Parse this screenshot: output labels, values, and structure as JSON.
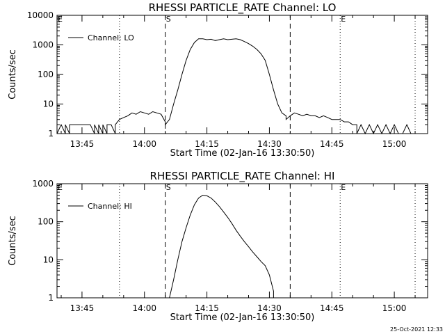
{
  "timestamp": "25-Oct-2021 12:33",
  "chart_data": [
    {
      "type": "line",
      "title": "RHESSI PARTICLE_RATE Channel: LO",
      "xlabel": "Start Time (02-Jan-16 13:30:50)",
      "ylabel": "Counts/sec",
      "yscale": "log",
      "xlim": [
        "13:39",
        "15:08"
      ],
      "ylim": [
        1,
        10000
      ],
      "x_ticks": [
        "13:45",
        "14:00",
        "14:15",
        "14:30",
        "14:45",
        "15:00"
      ],
      "y_ticks": [
        "1",
        "10",
        "100",
        "1000",
        "10000"
      ],
      "legend": "top-left",
      "markers": [
        {
          "label": "E",
          "x": "13:39",
          "style": "dotted"
        },
        {
          "label": "",
          "x": "13:54",
          "style": "dotted"
        },
        {
          "label": "S",
          "x": "14:05",
          "style": "dashed"
        },
        {
          "label": "",
          "x": "14:35",
          "style": "dashed"
        },
        {
          "label": "E",
          "x": "14:47",
          "style": "dotted"
        },
        {
          "label": "",
          "x": "15:05",
          "style": "dotted"
        }
      ],
      "series": [
        {
          "name": "Channel: LO",
          "points": [
            [
              "13:39",
              1
            ],
            [
              "13:40",
              2
            ],
            [
              "13:41",
              1
            ],
            [
              "13:41",
              2
            ],
            [
              "13:42",
              1
            ],
            [
              "13:42",
              2
            ],
            [
              "13:43",
              2
            ],
            [
              "13:44",
              2
            ],
            [
              "13:45",
              2
            ],
            [
              "13:46",
              2
            ],
            [
              "13:47",
              2
            ],
            [
              "13:48",
              1
            ],
            [
              "13:48",
              2
            ],
            [
              "13:49",
              1
            ],
            [
              "13:49",
              2
            ],
            [
              "13:50",
              1
            ],
            [
              "13:50",
              2
            ],
            [
              "13:51",
              1
            ],
            [
              "13:51",
              2
            ],
            [
              "13:52",
              2
            ],
            [
              "13:53",
              1
            ],
            [
              "13:53",
              2
            ],
            [
              "13:54",
              3
            ],
            [
              "13:55",
              3.5
            ],
            [
              "13:56",
              4
            ],
            [
              "13:57",
              5
            ],
            [
              "13:58",
              4.5
            ],
            [
              "13:59",
              5.5
            ],
            [
              "14:00",
              5
            ],
            [
              "14:01",
              4.5
            ],
            [
              "14:02",
              5.5
            ],
            [
              "14:03",
              5
            ],
            [
              "14:04",
              4.5
            ],
            [
              "14:05",
              2.5
            ],
            [
              "14:05",
              2
            ],
            [
              "14:06",
              3
            ],
            [
              "14:07",
              10
            ],
            [
              "14:08",
              30
            ],
            [
              "14:09",
              100
            ],
            [
              "14:10",
              300
            ],
            [
              "14:11",
              700
            ],
            [
              "14:12",
              1200
            ],
            [
              "14:13",
              1600
            ],
            [
              "14:14",
              1600
            ],
            [
              "14:15",
              1500
            ],
            [
              "14:16",
              1550
            ],
            [
              "14:17",
              1400
            ],
            [
              "14:18",
              1500
            ],
            [
              "14:19",
              1600
            ],
            [
              "14:20",
              1500
            ],
            [
              "14:21",
              1550
            ],
            [
              "14:22",
              1600
            ],
            [
              "14:23",
              1500
            ],
            [
              "14:24",
              1300
            ],
            [
              "14:25",
              1100
            ],
            [
              "14:26",
              900
            ],
            [
              "14:27",
              700
            ],
            [
              "14:28",
              500
            ],
            [
              "14:29",
              300
            ],
            [
              "14:30",
              100
            ],
            [
              "14:31",
              30
            ],
            [
              "14:32",
              10
            ],
            [
              "14:33",
              5
            ],
            [
              "14:34",
              4
            ],
            [
              "14:34",
              3
            ],
            [
              "14:35",
              4
            ],
            [
              "14:36",
              5
            ],
            [
              "14:37",
              4.5
            ],
            [
              "14:38",
              4
            ],
            [
              "14:39",
              4.5
            ],
            [
              "14:40",
              4
            ],
            [
              "14:41",
              4
            ],
            [
              "14:42",
              3.5
            ],
            [
              "14:43",
              4
            ],
            [
              "14:44",
              3.5
            ],
            [
              "14:45",
              3
            ],
            [
              "14:46",
              3
            ],
            [
              "14:47",
              3
            ],
            [
              "14:48",
              2.5
            ],
            [
              "14:49",
              2.5
            ],
            [
              "14:50",
              2
            ],
            [
              "14:51",
              2
            ],
            [
              "14:51",
              1
            ],
            [
              "14:52",
              2
            ],
            [
              "14:53",
              1
            ],
            [
              "14:54",
              2
            ],
            [
              "14:55",
              1
            ],
            [
              "14:56",
              2
            ],
            [
              "14:57",
              1
            ],
            [
              "14:58",
              2
            ],
            [
              "14:59",
              1
            ],
            [
              "15:00",
              2
            ],
            [
              "15:01",
              1
            ],
            [
              "15:02",
              1
            ],
            [
              "15:03",
              2
            ],
            [
              "15:04",
              1
            ]
          ]
        }
      ]
    },
    {
      "type": "line",
      "title": "RHESSI PARTICLE_RATE Channel: HI",
      "xlabel": "Start Time (02-Jan-16 13:30:50)",
      "ylabel": "Counts/sec",
      "yscale": "log",
      "xlim": [
        "13:39",
        "15:08"
      ],
      "ylim": [
        1,
        1000
      ],
      "x_ticks": [
        "13:45",
        "14:00",
        "14:15",
        "14:30",
        "14:45",
        "15:00"
      ],
      "y_ticks": [
        "1",
        "10",
        "100",
        "1000"
      ],
      "legend": "top-left",
      "markers": [
        {
          "label": "E",
          "x": "13:39",
          "style": "dotted"
        },
        {
          "label": "",
          "x": "13:54",
          "style": "dotted"
        },
        {
          "label": "S",
          "x": "14:05",
          "style": "dashed"
        },
        {
          "label": "",
          "x": "14:35",
          "style": "dashed"
        },
        {
          "label": "E",
          "x": "14:47",
          "style": "dotted"
        },
        {
          "label": "",
          "x": "15:05",
          "style": "dotted"
        }
      ],
      "series": [
        {
          "name": "Channel: HI",
          "points": [
            [
              "14:06",
              1
            ],
            [
              "14:07",
              3
            ],
            [
              "14:08",
              10
            ],
            [
              "14:09",
              30
            ],
            [
              "14:10",
              70
            ],
            [
              "14:11",
              150
            ],
            [
              "14:12",
              280
            ],
            [
              "14:13",
              420
            ],
            [
              "14:14",
              500
            ],
            [
              "14:15",
              480
            ],
            [
              "14:16",
              420
            ],
            [
              "14:17",
              330
            ],
            [
              "14:18",
              250
            ],
            [
              "14:19",
              180
            ],
            [
              "14:20",
              130
            ],
            [
              "14:21",
              90
            ],
            [
              "14:22",
              60
            ],
            [
              "14:23",
              42
            ],
            [
              "14:24",
              30
            ],
            [
              "14:25",
              22
            ],
            [
              "14:26",
              16
            ],
            [
              "14:27",
              12
            ],
            [
              "14:28",
              9
            ],
            [
              "14:29",
              7
            ],
            [
              "14:30",
              4
            ],
            [
              "14:31",
              1.5
            ],
            [
              "14:31",
              1
            ]
          ]
        }
      ]
    }
  ]
}
